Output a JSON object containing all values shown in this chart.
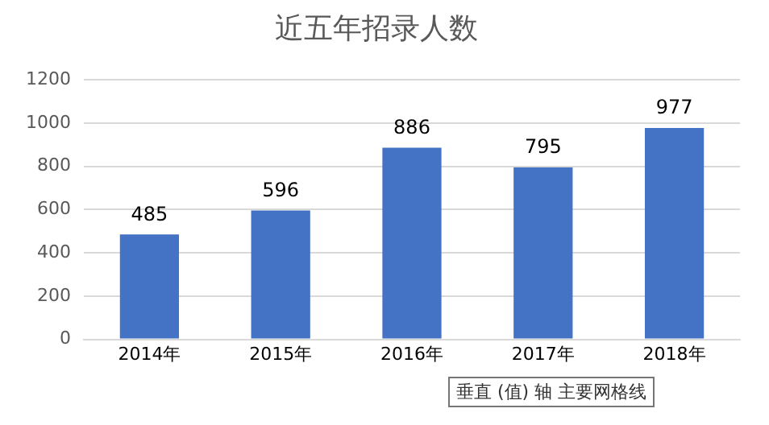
{
  "chart_data": {
    "type": "bar",
    "title": "近五年招录人数",
    "categories": [
      "2014年",
      "2015年",
      "2016年",
      "2017年",
      "2018年"
    ],
    "values": [
      485,
      596,
      886,
      795,
      977
    ],
    "color": "#4472c4",
    "ylim": [
      0,
      1200
    ],
    "yticks": [
      0,
      200,
      400,
      600,
      800,
      1000,
      1200
    ],
    "grid": "y",
    "data_labels": true,
    "annotations": [
      "垂直 (值) 轴 主要网格线"
    ]
  }
}
